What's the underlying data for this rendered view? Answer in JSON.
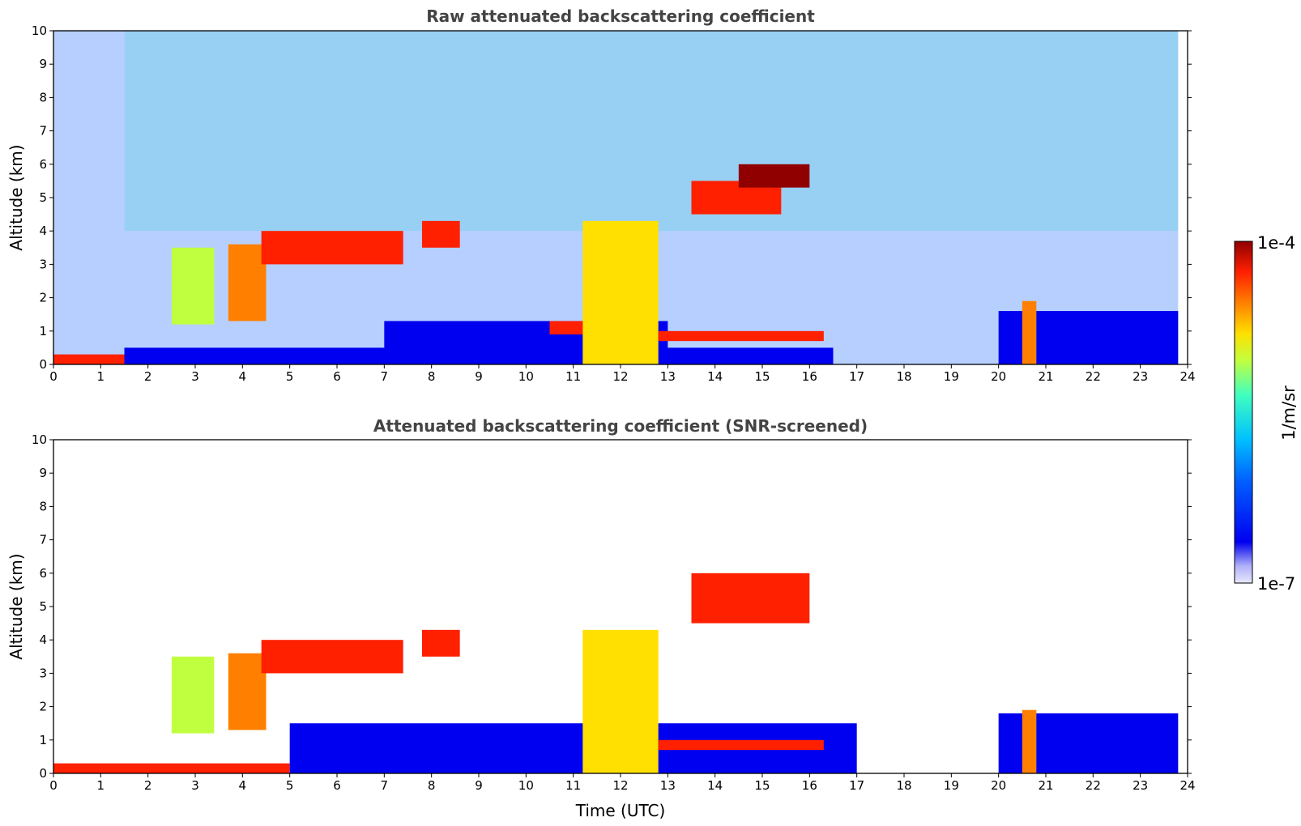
{
  "chart_data": [
    {
      "type": "heatmap",
      "title": "Raw attenuated backscattering coefficient",
      "xlabel": "",
      "ylabel": "Altitude (km)",
      "xlim": [
        0,
        24
      ],
      "ylim": [
        0,
        10
      ],
      "xticks": [
        "0",
        "1",
        "2",
        "3",
        "4",
        "5",
        "6",
        "7",
        "8",
        "9",
        "10",
        "11",
        "12",
        "13",
        "14",
        "15",
        "16",
        "17",
        "18",
        "19",
        "20",
        "21",
        "22",
        "23",
        "24"
      ],
      "yticks": [
        "0",
        "1",
        "2",
        "3",
        "4",
        "5",
        "6",
        "7",
        "8",
        "9",
        "10"
      ],
      "features": [
        {
          "name": "surface layer",
          "t_start": 0.0,
          "t_end": 5.0,
          "alt_bottom": 0.0,
          "alt_top": 0.3,
          "level": 0.95
        },
        {
          "name": "aerosol layer",
          "t_start": 1.5,
          "t_end": 16.5,
          "alt_bottom": 0.0,
          "alt_top": 0.5,
          "level": 0.25
        },
        {
          "name": "boundary layer",
          "t_start": 7.0,
          "t_end": 13.0,
          "alt_bottom": 0.4,
          "alt_top": 1.3,
          "level": 0.3
        },
        {
          "name": "boundary layer",
          "t_start": 20.0,
          "t_end": 23.8,
          "alt_bottom": 0.0,
          "alt_top": 1.6,
          "level": 0.25
        },
        {
          "name": "cloud",
          "t_start": 2.5,
          "t_end": 3.4,
          "alt_bottom": 1.2,
          "alt_top": 3.5,
          "level": 0.6
        },
        {
          "name": "cloud",
          "t_start": 3.7,
          "t_end": 4.5,
          "alt_bottom": 1.3,
          "alt_top": 3.6,
          "level": 0.85
        },
        {
          "name": "cloud",
          "t_start": 4.4,
          "t_end": 7.4,
          "alt_bottom": 3.0,
          "alt_top": 4.0,
          "level": 0.92
        },
        {
          "name": "cloud",
          "t_start": 7.8,
          "t_end": 8.6,
          "alt_bottom": 3.5,
          "alt_top": 4.3,
          "level": 0.95
        },
        {
          "name": "cloud",
          "t_start": 10.5,
          "t_end": 11.2,
          "alt_bottom": 0.9,
          "alt_top": 1.3,
          "level": 0.95
        },
        {
          "name": "cloud",
          "t_start": 11.2,
          "t_end": 12.8,
          "alt_bottom": 0.0,
          "alt_top": 4.3,
          "level": 0.7
        },
        {
          "name": "cloud",
          "t_start": 12.8,
          "t_end": 16.3,
          "alt_bottom": 0.7,
          "alt_top": 1.0,
          "level": 0.95
        },
        {
          "name": "cloud",
          "t_start": 13.5,
          "t_end": 15.4,
          "alt_bottom": 4.5,
          "alt_top": 5.5,
          "level": 0.9
        },
        {
          "name": "cloud",
          "t_start": 14.5,
          "t_end": 16.0,
          "alt_bottom": 5.3,
          "alt_top": 6.0,
          "level": 0.97
        },
        {
          "name": "cloud",
          "t_start": 20.5,
          "t_end": 20.8,
          "alt_bottom": 0.0,
          "alt_top": 1.9,
          "level": 0.85
        }
      ]
    },
    {
      "type": "heatmap",
      "title": "Attenuated backscattering coefficient (SNR-screened)",
      "xlabel": "Time (UTC)",
      "ylabel": "Altitude (km)",
      "xlim": [
        0,
        24
      ],
      "ylim": [
        0,
        10
      ],
      "xticks": [
        "0",
        "1",
        "2",
        "3",
        "4",
        "5",
        "6",
        "7",
        "8",
        "9",
        "10",
        "11",
        "12",
        "13",
        "14",
        "15",
        "16",
        "17",
        "18",
        "19",
        "20",
        "21",
        "22",
        "23",
        "24"
      ],
      "yticks": [
        "0",
        "1",
        "2",
        "3",
        "4",
        "5",
        "6",
        "7",
        "8",
        "9",
        "10"
      ],
      "features": [
        {
          "name": "surface layer",
          "t_start": 0.0,
          "t_end": 5.0,
          "alt_bottom": 0.0,
          "alt_top": 0.3,
          "level": 0.95
        },
        {
          "name": "boundary layer",
          "t_start": 5.0,
          "t_end": 17.0,
          "alt_bottom": 0.0,
          "alt_top": 1.5,
          "level": 0.25
        },
        {
          "name": "boundary layer",
          "t_start": 20.0,
          "t_end": 23.8,
          "alt_bottom": 0.0,
          "alt_top": 1.8,
          "level": 0.25
        },
        {
          "name": "cloud",
          "t_start": 2.5,
          "t_end": 3.4,
          "alt_bottom": 1.2,
          "alt_top": 3.5,
          "level": 0.6
        },
        {
          "name": "cloud",
          "t_start": 3.7,
          "t_end": 4.5,
          "alt_bottom": 1.3,
          "alt_top": 3.6,
          "level": 0.85
        },
        {
          "name": "cloud",
          "t_start": 4.4,
          "t_end": 7.4,
          "alt_bottom": 3.0,
          "alt_top": 4.0,
          "level": 0.92
        },
        {
          "name": "cloud",
          "t_start": 7.8,
          "t_end": 8.6,
          "alt_bottom": 3.5,
          "alt_top": 4.3,
          "level": 0.95
        },
        {
          "name": "cloud",
          "t_start": 11.2,
          "t_end": 12.8,
          "alt_bottom": 0.0,
          "alt_top": 4.3,
          "level": 0.7
        },
        {
          "name": "cloud",
          "t_start": 12.8,
          "t_end": 16.3,
          "alt_bottom": 0.7,
          "alt_top": 1.0,
          "level": 0.95
        },
        {
          "name": "cloud",
          "t_start": 13.5,
          "t_end": 16.0,
          "alt_bottom": 4.5,
          "alt_top": 6.0,
          "level": 0.95
        },
        {
          "name": "cloud",
          "t_start": 20.5,
          "t_end": 20.8,
          "alt_bottom": 0.0,
          "alt_top": 1.9,
          "level": 0.85
        }
      ]
    }
  ],
  "colorbar": {
    "label": "1/m/sr",
    "max_label": "1e-4",
    "min_label": "1e-7",
    "scale": "log",
    "range": [
      1e-07,
      0.0001
    ],
    "colors": [
      "#ffffff",
      "#d8d8f8",
      "#a8a8f0",
      "#0000f0",
      "#0060ff",
      "#00c0ff",
      "#40ffc0",
      "#c0ff40",
      "#ffe000",
      "#ff8000",
      "#ff2000",
      "#900000"
    ]
  }
}
